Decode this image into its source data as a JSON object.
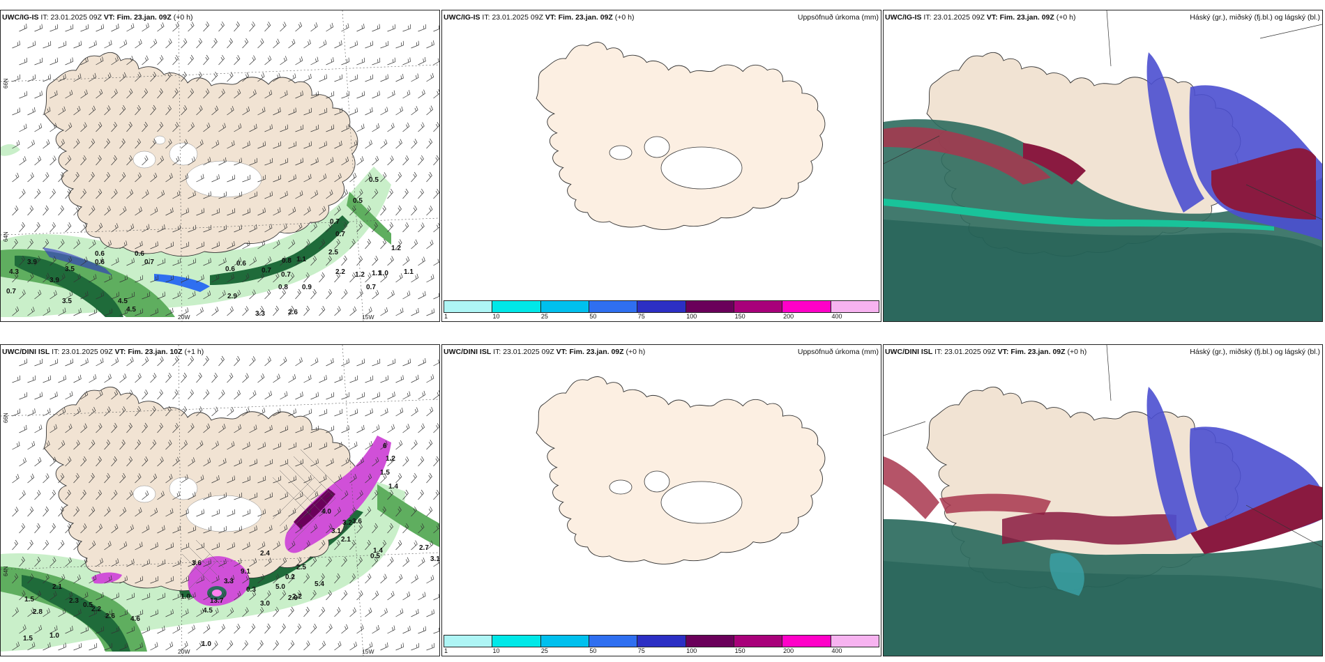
{
  "panels": {
    "p1": {
      "model": "UWC/IG-IS",
      "it_label": "IT:",
      "it": "23.01.2025 09Z",
      "vt_label": "VT:",
      "vt": "Fim. 23.jan. 09Z",
      "lead": "(+0 h)"
    },
    "p2": {
      "model": "UWC/IG-IS",
      "it_label": "IT:",
      "it": "23.01.2025 09Z",
      "vt_label": "VT:",
      "vt": "Fim. 23.jan. 09Z",
      "lead": "(+0 h)",
      "right_title": "Uppsöfnuð úrkoma (mm)"
    },
    "p3": {
      "model": "UWC/IG-IS",
      "it_label": "IT:",
      "it": "23.01.2025 09Z",
      "vt_label": "VT:",
      "vt": "Fim. 23.jan. 09Z",
      "lead": "(+0 h)",
      "right_title": "Háský (gr.), miðský (fj.bl.) og lágský (bl.)"
    },
    "p4": {
      "model": "UWC/DINI ISL",
      "it_label": "IT:",
      "it": "23.01.2025 09Z",
      "vt_label": "VT:",
      "vt": "Fim. 23.jan. 10Z",
      "lead": "(+1 h)"
    },
    "p5": {
      "model": "UWC/DINI ISL",
      "it_label": "IT:",
      "it": "23.01.2025 09Z",
      "vt_label": "VT:",
      "vt": "Fim. 23.jan. 09Z",
      "lead": "(+0 h)",
      "right_title": "Uppsöfnuð úrkoma (mm)"
    },
    "p6": {
      "model": "UWC/DINI ISL",
      "it_label": "IT:",
      "it": "23.01.2025 09Z",
      "vt_label": "VT:",
      "vt": "Fim. 23.jan. 09Z",
      "lead": "(+0 h)",
      "right_title": "Háský (gr.), miðský (fj.bl.) og lágský (bl.)"
    }
  },
  "axes": {
    "lon_left": "20W",
    "lon_right": "15W",
    "lat_top": "66N",
    "lat_bottom": "64N"
  },
  "colorbar": {
    "ticks": [
      "1",
      "10",
      "25",
      "50",
      "75",
      "100",
      "150",
      "200",
      "400"
    ],
    "colors": [
      "#aef5f5",
      "#00e8e8",
      "#00c0ee",
      "#2f6ff0",
      "#2c2fc4",
      "#6a005a",
      "#a8007a",
      "#ff00c8",
      "#f7b3f0"
    ]
  },
  "colors": {
    "land": "#f1e3d3",
    "sea": "#ffffff",
    "precip_light": "#c9efc9",
    "precip_mid": "#5fae5f",
    "precip_dark": "#1f6b3a",
    "snow": "#d050d8",
    "low_cloud": "#2d6b5e",
    "mid_cloud": "#a8364e",
    "high_cloud": "#4b4fd0"
  },
  "precip_labels_top": [
    "0.5",
    "0.5",
    "0.7",
    "0.7",
    "0.6",
    "0.6",
    "0.6",
    "0.7",
    "0.6",
    "0.6",
    "0.7",
    "0.8",
    "0.9",
    "1.1",
    "0.7",
    "0.8",
    "4.3",
    "3.9",
    "0.7",
    "3.9",
    "3.5",
    "4.5",
    "3.5",
    "4.5",
    "2.9",
    "3.3",
    "2.6",
    "2.2",
    "2.5",
    "1.2",
    "1.1",
    "0.7",
    "1.0",
    "1.1",
    "1.2"
  ],
  "precip_labels_bottom": [
    "6",
    "1.2",
    "1.5",
    "1.4",
    "2.7",
    "2.1",
    "4.0",
    "3.1",
    "3.2",
    "3.6",
    "1.4",
    "2.5",
    "2.4",
    "3.6",
    "9.1",
    "3.3",
    "13.7",
    "4.5",
    "0.3",
    "3.0",
    "5.0",
    "2.9",
    "2.2",
    "5.4",
    "0.5",
    "0.2",
    "3.1",
    "2.1",
    "2.3",
    "2.2",
    "2.6",
    "4.6",
    "1.5",
    "1.0",
    "2.8",
    "1.0",
    "1.5",
    "0.5",
    "1.0"
  ]
}
